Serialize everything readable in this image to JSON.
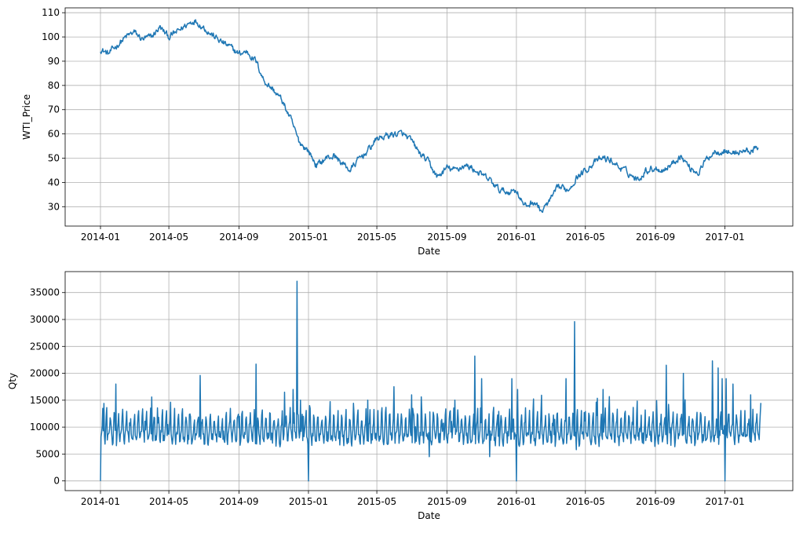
{
  "chart_data": [
    {
      "type": "line",
      "xlabel": "Date",
      "ylabel": "WTI_Price",
      "grid": true,
      "color": "#1f77b4",
      "xlim": [
        "2013-10-31",
        "2017-04-30"
      ],
      "ylim": [
        22,
        112
      ],
      "xticks": [
        "2014-01",
        "2014-05",
        "2014-09",
        "2015-01",
        "2015-05",
        "2015-09",
        "2016-01",
        "2016-05",
        "2016-09",
        "2017-01"
      ],
      "yticks": [
        30,
        40,
        50,
        60,
        70,
        80,
        90,
        100,
        110
      ],
      "series": [
        {
          "x": [
            "2014-01-01",
            "2014-01-15",
            "2014-02-01",
            "2014-02-15",
            "2014-03-01",
            "2014-03-15",
            "2014-04-01",
            "2014-04-15",
            "2014-05-01",
            "2014-05-15",
            "2014-06-01",
            "2014-06-15",
            "2014-07-01",
            "2014-07-15",
            "2014-08-01",
            "2014-08-15",
            "2014-09-01",
            "2014-09-15",
            "2014-10-01",
            "2014-10-15",
            "2014-11-01",
            "2014-11-15",
            "2014-12-01",
            "2014-12-15",
            "2015-01-01",
            "2015-01-15",
            "2015-02-01",
            "2015-02-15",
            "2015-03-01",
            "2015-03-15",
            "2015-04-01",
            "2015-04-15",
            "2015-05-01",
            "2015-05-15",
            "2015-06-01",
            "2015-06-15",
            "2015-07-01",
            "2015-07-15",
            "2015-08-01",
            "2015-08-15",
            "2015-09-01",
            "2015-09-15",
            "2015-10-01",
            "2015-10-15",
            "2015-11-01",
            "2015-11-15",
            "2015-12-01",
            "2015-12-15",
            "2016-01-01",
            "2016-01-15",
            "2016-02-01",
            "2016-02-15",
            "2016-03-01",
            "2016-03-15",
            "2016-04-01",
            "2016-04-15",
            "2016-05-01",
            "2016-05-15",
            "2016-06-01",
            "2016-06-15",
            "2016-07-01",
            "2016-07-15",
            "2016-08-01",
            "2016-08-15",
            "2016-09-01",
            "2016-09-15",
            "2016-10-01",
            "2016-10-15",
            "2016-11-01",
            "2016-11-15",
            "2016-12-01",
            "2016-12-15",
            "2017-01-01",
            "2017-01-15",
            "2017-02-01",
            "2017-02-15",
            "2017-03-01"
          ],
          "y": [
            95,
            93,
            97,
            100,
            102,
            99,
            100,
            104,
            100,
            102,
            105,
            107,
            104,
            101,
            98,
            96,
            93,
            94,
            90,
            82,
            78,
            74,
            66,
            57,
            53,
            47,
            50,
            51,
            48,
            45,
            50,
            53,
            58,
            59,
            60,
            60,
            57,
            52,
            48,
            42,
            46,
            45,
            47,
            46,
            43,
            41,
            37,
            36,
            37,
            30,
            32,
            28,
            33,
            38,
            37,
            42,
            45,
            48,
            50,
            49,
            46,
            44,
            41,
            45,
            46,
            45,
            48,
            51,
            46,
            44,
            50,
            53,
            53,
            52,
            53,
            53,
            54
          ]
        }
      ]
    },
    {
      "type": "line",
      "xlabel": "Date",
      "ylabel": "Qty",
      "grid": true,
      "color": "#1f77b4",
      "xlim": [
        "2013-10-31",
        "2017-04-30"
      ],
      "ylim": [
        -1800,
        38900
      ],
      "xticks": [
        "2014-01",
        "2014-05",
        "2014-09",
        "2015-01",
        "2015-05",
        "2015-09",
        "2016-01",
        "2016-05",
        "2016-09",
        "2017-01"
      ],
      "yticks": [
        0,
        5000,
        10000,
        15000,
        20000,
        25000,
        30000,
        35000
      ],
      "baseline": 8500,
      "weekly_amplitude": 2500,
      "series": [
        {
          "x": [
            "2014-01-01",
            "2014-01-03",
            "2014-01-07",
            "2014-01-28",
            "2014-04-01",
            "2014-06-25",
            "2014-09-02",
            "2014-10-01",
            "2014-11-20",
            "2014-12-05",
            "2014-12-12",
            "2014-12-18",
            "2014-12-23",
            "2015-01-01",
            "2015-01-03",
            "2015-04-15",
            "2015-07-01",
            "2015-08-01",
            "2015-09-15",
            "2015-10-20",
            "2015-11-01",
            "2015-11-15",
            "2015-12-24",
            "2016-01-01",
            "2016-01-03",
            "2016-03-28",
            "2016-04-12",
            "2016-04-15",
            "2016-06-01",
            "2016-09-20",
            "2016-10-20",
            "2016-12-10",
            "2016-12-20",
            "2016-12-27",
            "2017-01-01",
            "2017-01-03",
            "2017-01-15",
            "2017-02-15",
            "2017-03-05"
          ],
          "y": [
            0,
            9000,
            14400,
            18000,
            15600,
            19600,
            12000,
            21700,
            16500,
            17000,
            37100,
            15000,
            12000,
            0,
            14000,
            15000,
            16000,
            4500,
            15000,
            23200,
            19000,
            4500,
            19000,
            0,
            17000,
            19000,
            29600,
            5800,
            17000,
            21500,
            20000,
            22300,
            21000,
            19000,
            0,
            19000,
            18000,
            16000,
            14500
          ]
        }
      ]
    }
  ]
}
